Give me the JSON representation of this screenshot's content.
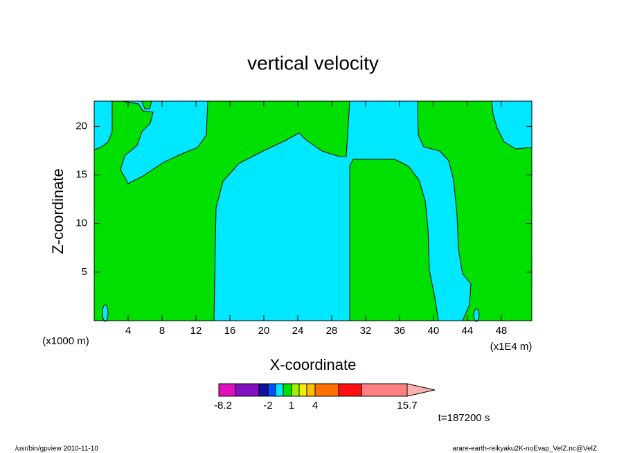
{
  "chart_data": {
    "type": "contour",
    "title": "vertical velocity",
    "x_label": "X-coordinate",
    "y_label": "Z-coordinate",
    "x_unit_left": "(x1000 m)",
    "x_unit_right": "(x1E4 m)",
    "xlim": [
      0,
      51.6
    ],
    "xticks": [
      4,
      8,
      12,
      16,
      20,
      24,
      28,
      32,
      36,
      40,
      44,
      48
    ],
    "ylim": [
      0,
      22.6
    ],
    "yticks": [
      5,
      10,
      15,
      20
    ],
    "background_color": "#00e000",
    "region_color": "#00e8ff",
    "colorbar": {
      "colors": [
        "#e010c0",
        "#8010c0",
        "#1010a0",
        "#0050ff",
        "#00e8ff",
        "#00e000",
        "#a0f000",
        "#f0f000",
        "#ffc000",
        "#ff7000",
        "#ff1010",
        "#ff8080",
        "#ffb0b0"
      ],
      "ticks": [
        -8.2,
        -2,
        1,
        4,
        15.7
      ]
    },
    "annotation": "t=187200 s",
    "footer_left": "/usr/bin/gpview   2010-11-10",
    "footer_right": "arare-earth-reikyaku2K-noEvap_VelZ.nc@VelZ"
  }
}
